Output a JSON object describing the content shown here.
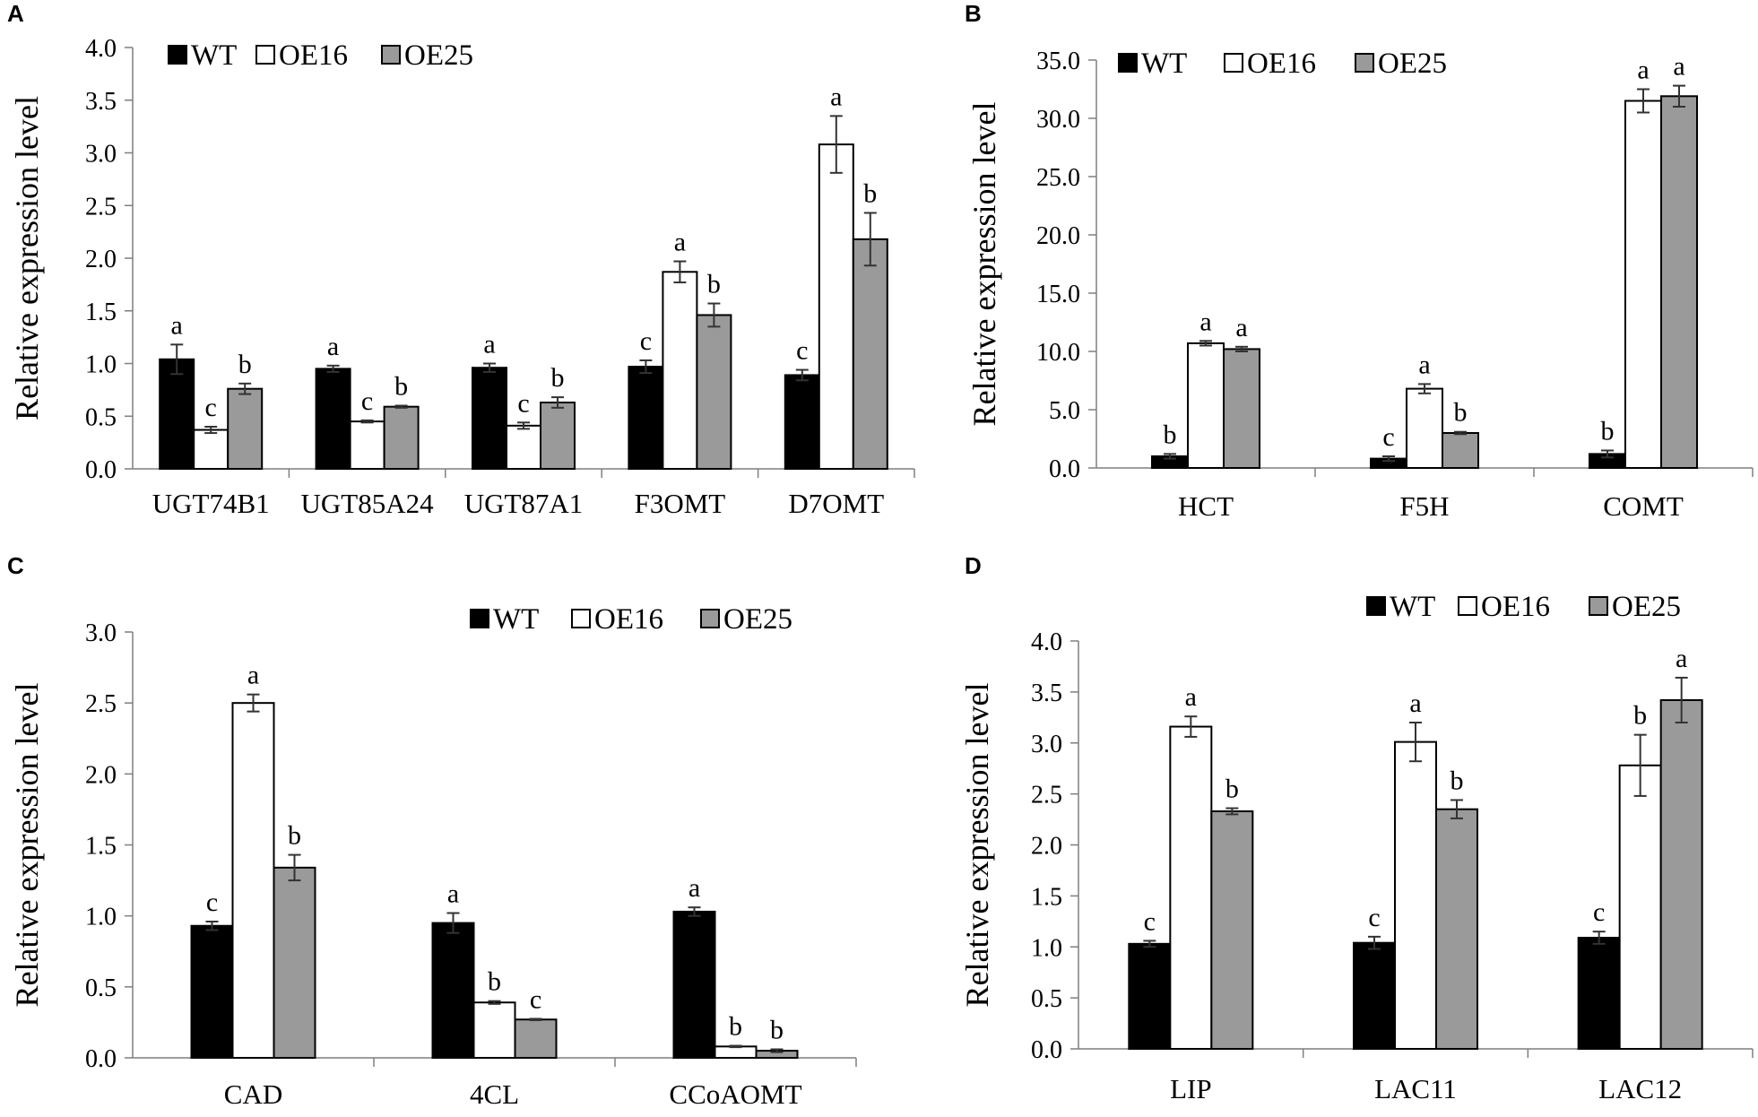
{
  "figure": {
    "width": 1961,
    "height": 1246
  },
  "colors": {
    "WT": "#000000",
    "OE16": "#ffffff",
    "OE25": "#9a9a9a",
    "axis": "#7f7f7f",
    "error": "#333333"
  },
  "chart_data": [
    {
      "panel": "A",
      "type": "bar",
      "ylabel": "Relative expression level",
      "ylim": [
        0,
        4.0
      ],
      "yticks": [
        "0.0",
        "0.5",
        "1.0",
        "1.5",
        "2.0",
        "2.5",
        "3.0",
        "3.5",
        "4.0"
      ],
      "categories": [
        "UGT74B1",
        "UGT85A24",
        "UGT87A1",
        "F3OMT",
        "D7OMT"
      ],
      "legend": [
        "WT",
        "OE16",
        "OE25"
      ],
      "legend_position": "top-left",
      "series": [
        {
          "name": "WT",
          "values": [
            1.04,
            0.95,
            0.96,
            0.97,
            0.89
          ],
          "errors": [
            0.14,
            0.03,
            0.04,
            0.06,
            0.05
          ],
          "letters": [
            "a",
            "a",
            "a",
            "c",
            "c"
          ]
        },
        {
          "name": "OE16",
          "values": [
            0.37,
            0.45,
            0.41,
            1.87,
            3.08
          ],
          "errors": [
            0.03,
            0.01,
            0.03,
            0.1,
            0.27
          ],
          "letters": [
            "c",
            "c",
            "c",
            "a",
            "a"
          ]
        },
        {
          "name": "OE25",
          "values": [
            0.76,
            0.59,
            0.63,
            1.46,
            2.18
          ],
          "errors": [
            0.05,
            0.01,
            0.05,
            0.11,
            0.25
          ],
          "letters": [
            "b",
            "b",
            "b",
            "b",
            "b"
          ]
        }
      ]
    },
    {
      "panel": "B",
      "type": "bar",
      "ylabel": "Relative expression level",
      "ylim": [
        0,
        35.0
      ],
      "yticks": [
        "0.0",
        "5.0",
        "10.0",
        "15.0",
        "20.0",
        "25.0",
        "30.0",
        "35.0"
      ],
      "categories": [
        "HCT",
        "F5H",
        "COMT"
      ],
      "legend": [
        "WT",
        "OE16",
        "OE25"
      ],
      "legend_position": "top-left",
      "series": [
        {
          "name": "WT",
          "values": [
            1.0,
            0.8,
            1.2
          ],
          "errors": [
            0.2,
            0.2,
            0.3
          ],
          "letters": [
            "b",
            "c",
            "b"
          ]
        },
        {
          "name": "OE16",
          "values": [
            10.7,
            6.8,
            31.5
          ],
          "errors": [
            0.2,
            0.4,
            1.0
          ],
          "letters": [
            "a",
            "a",
            "a"
          ]
        },
        {
          "name": "OE25",
          "values": [
            10.2,
            3.0,
            31.9
          ],
          "errors": [
            0.2,
            0.1,
            0.9
          ],
          "letters": [
            "a",
            "b",
            "a"
          ]
        }
      ]
    },
    {
      "panel": "C",
      "type": "bar",
      "ylabel": "Relative expression level",
      "ylim": [
        0,
        3.0
      ],
      "yticks": [
        "0.0",
        "0.5",
        "1.0",
        "1.5",
        "2.0",
        "2.5",
        "3.0"
      ],
      "categories": [
        "CAD",
        "4CL",
        "CCoAOMT"
      ],
      "legend": [
        "WT",
        "OE16",
        "OE25"
      ],
      "legend_position": "top-right",
      "series": [
        {
          "name": "WT",
          "values": [
            0.93,
            0.95,
            1.03
          ],
          "errors": [
            0.03,
            0.07,
            0.03
          ],
          "letters": [
            "c",
            "a",
            "a"
          ]
        },
        {
          "name": "OE16",
          "values": [
            2.5,
            0.39,
            0.08
          ],
          "errors": [
            0.06,
            0.01,
            0.005
          ],
          "letters": [
            "a",
            "b",
            "b"
          ]
        },
        {
          "name": "OE25",
          "values": [
            1.34,
            0.27,
            0.05
          ],
          "errors": [
            0.09,
            0.005,
            0.01
          ],
          "letters": [
            "b",
            "c",
            "b"
          ]
        }
      ]
    },
    {
      "panel": "D",
      "type": "bar",
      "ylabel": "Relative expression level",
      "ylim": [
        0,
        4.0
      ],
      "yticks": [
        "0.0",
        "0.5",
        "1.0",
        "1.5",
        "2.0",
        "2.5",
        "3.0",
        "3.5",
        "4.0"
      ],
      "categories": [
        "LIP",
        "LAC11",
        "LAC12"
      ],
      "legend": [
        "WT",
        "OE16",
        "OE25"
      ],
      "legend_position": "top-right",
      "series": [
        {
          "name": "WT",
          "values": [
            1.03,
            1.04,
            1.09
          ],
          "errors": [
            0.03,
            0.06,
            0.06
          ],
          "letters": [
            "c",
            "c",
            "c"
          ]
        },
        {
          "name": "OE16",
          "values": [
            3.16,
            3.01,
            2.78
          ],
          "errors": [
            0.1,
            0.19,
            0.3
          ],
          "letters": [
            "a",
            "a",
            "b"
          ]
        },
        {
          "name": "OE25",
          "values": [
            2.33,
            2.35,
            3.42
          ],
          "errors": [
            0.03,
            0.09,
            0.22
          ],
          "letters": [
            "b",
            "b",
            "a"
          ]
        }
      ]
    }
  ]
}
